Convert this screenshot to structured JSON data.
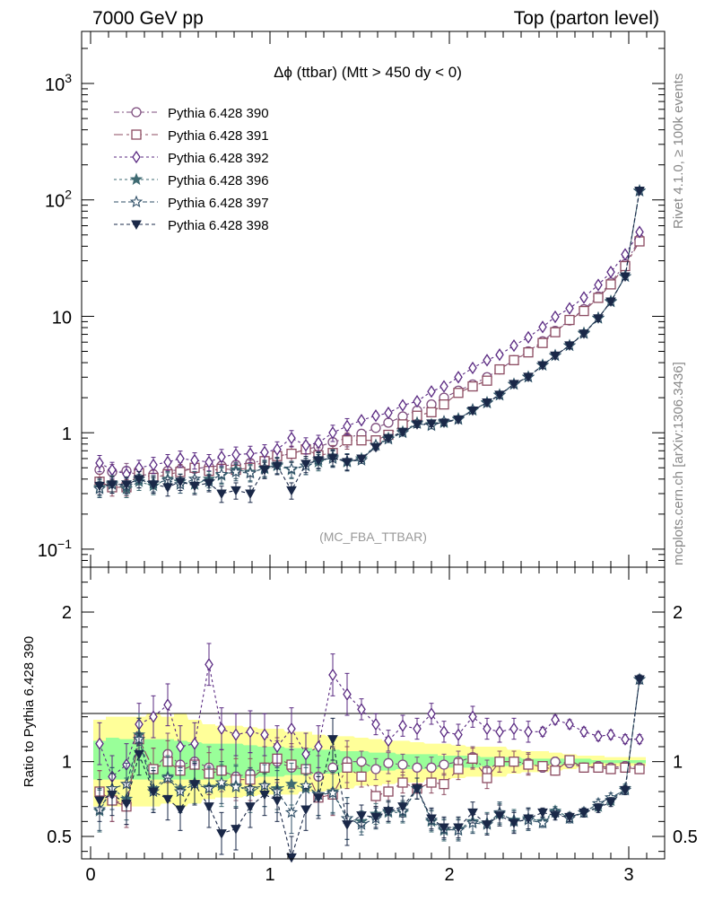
{
  "header": {
    "left": "7000 GeV pp",
    "right": "Top (parton level)"
  },
  "side": {
    "rivet": "Rivet 4.1.0, ≥ 100k events",
    "mcplots": "mcplots.cern.ch [arXiv:1306.3436]"
  },
  "watermark": "(MC_FBA_TTBAR)",
  "colors": {
    "s390": "#7e4e7e",
    "s391": "#8c4b61",
    "s392": "#5a2a82",
    "s396": "#3e6a72",
    "s397": "#2e4e66",
    "s398": "#1a2848",
    "band_yellow": "#ffff99",
    "band_green": "#99ff99"
  },
  "chart_data": {
    "type": "line",
    "title_prefix": "Δϕ",
    "title_rest": " (ttbar) (Mtt > 450 dy < 0)",
    "xlim": [
      -0.05,
      3.2
    ],
    "main": {
      "scale": "log",
      "ylim": [
        0.07,
        2800
      ],
      "ytick_labels": [
        {
          "value": 0.1,
          "base": "10",
          "exp": "−1"
        },
        {
          "value": 1,
          "base": "1",
          "exp": ""
        },
        {
          "value": 10,
          "base": "10",
          "exp": ""
        },
        {
          "value": 100,
          "base": "10",
          "exp": "2"
        },
        {
          "value": 1000,
          "base": "10",
          "exp": "3"
        }
      ]
    },
    "ratio": {
      "ylabel": "Ratio to Pythia 6.428 390",
      "ylim": [
        0.35,
        2.3
      ],
      "ytick_labels": [
        "0.5",
        "1",
        "2"
      ],
      "ytick_values": [
        0.5,
        1,
        2
      ]
    },
    "xtick_labels": [
      "0",
      "1",
      "2",
      "3"
    ],
    "xtick_values": [
      0,
      1,
      2,
      3
    ],
    "x": [
      0.05,
      0.12,
      0.2,
      0.27,
      0.35,
      0.43,
      0.5,
      0.58,
      0.66,
      0.73,
      0.81,
      0.89,
      0.97,
      1.04,
      1.12,
      1.2,
      1.27,
      1.35,
      1.43,
      1.51,
      1.59,
      1.66,
      1.74,
      1.82,
      1.9,
      1.97,
      2.05,
      2.13,
      2.21,
      2.28,
      2.36,
      2.44,
      2.52,
      2.59,
      2.67,
      2.75,
      2.83,
      2.9,
      2.98,
      3.06
    ],
    "series": [
      {
        "name": "Pythia 6.428 390",
        "marker": "circle-open",
        "dash": "6,3,2,3",
        "values": [
          0.48,
          0.46,
          0.47,
          0.43,
          0.44,
          0.47,
          0.48,
          0.49,
          0.51,
          0.52,
          0.53,
          0.55,
          0.58,
          0.63,
          0.66,
          0.72,
          0.76,
          0.83,
          0.9,
          0.98,
          1.1,
          1.22,
          1.38,
          1.55,
          1.75,
          2.0,
          2.3,
          2.6,
          3.0,
          3.5,
          4.2,
          5.0,
          6.1,
          7.5,
          9.2,
          11.5,
          14.8,
          19.5,
          28,
          46
        ],
        "ratio": [
          0.8,
          0.74,
          0.72,
          1.15,
          0.95,
          1.05,
          0.98,
          1.0,
          0.96,
          0.94,
          0.9,
          0.92,
          0.96,
          1.0,
          0.96,
          0.95,
          0.9,
          0.96,
          1.0,
          1.0,
          0.95,
          0.99,
          0.98,
          0.96,
          0.96,
          0.98,
          1.0,
          1.03,
          0.94,
          1.0,
          1.0,
          0.99,
          0.96,
          1.0,
          0.99,
          0.96,
          0.97,
          0.96,
          0.97,
          0.96
        ]
      },
      {
        "name": "Pythia 6.428 391",
        "marker": "square-open",
        "dash": "10,4,3,4",
        "values": [
          0.38,
          0.34,
          0.34,
          0.45,
          0.41,
          0.44,
          0.46,
          0.5,
          0.47,
          0.49,
          0.48,
          0.5,
          0.57,
          0.63,
          0.66,
          0.72,
          0.64,
          0.67,
          0.86,
          0.86,
          0.86,
          0.96,
          1.18,
          1.4,
          1.5,
          1.75,
          2.2,
          2.5,
          2.8,
          3.5,
          4.2,
          4.9,
          5.9,
          7.3,
          9.3,
          11.1,
          14.4,
          18.8,
          27,
          44
        ],
        "ratio": [
          0.8,
          0.74,
          0.7,
          1.15,
          0.95,
          1.0,
          0.94,
          0.98,
          0.92,
          0.94,
          0.88,
          0.88,
          0.96,
          1.02,
          0.98,
          0.95,
          0.76,
          0.78,
          0.96,
          0.9,
          0.77,
          0.8,
          0.86,
          0.82,
          0.86,
          0.85,
          0.95,
          1.02,
          0.89,
          1.0,
          1.0,
          0.98,
          0.97,
          0.94,
          1.01,
          0.96,
          0.96,
          0.95,
          0.96,
          0.95
        ]
      },
      {
        "name": "Pythia 6.428 392",
        "marker": "diamond-open",
        "dash": "3,3",
        "values": [
          0.55,
          0.48,
          0.44,
          0.5,
          0.53,
          0.56,
          0.6,
          0.58,
          0.56,
          0.62,
          0.65,
          0.66,
          0.68,
          0.72,
          0.9,
          0.78,
          0.82,
          1.0,
          1.14,
          1.28,
          1.4,
          1.48,
          1.72,
          1.86,
          2.26,
          2.5,
          3.0,
          3.6,
          4.2,
          4.68,
          5.6,
          6.6,
          8.1,
          9.9,
          11.7,
          14.5,
          18.6,
          24.0,
          34.0,
          53
        ],
        "ratio": [
          1.12,
          0.9,
          0.98,
          1.25,
          1.3,
          1.38,
          1.1,
          1.12,
          1.65,
          1.22,
          1.18,
          1.2,
          1.18,
          1.1,
          1.22,
          1.05,
          1.1,
          1.58,
          1.45,
          1.35,
          1.25,
          1.14,
          1.24,
          1.22,
          1.32,
          1.2,
          1.18,
          1.3,
          1.22,
          1.2,
          1.22,
          1.2,
          1.2,
          1.28,
          1.25,
          1.2,
          1.17,
          1.18,
          1.15,
          1.15
        ]
      },
      {
        "name": "Pythia 6.428 396",
        "marker": "star-solid",
        "dash": "3,3",
        "values": [
          0.34,
          0.37,
          0.33,
          0.38,
          0.35,
          0.4,
          0.38,
          0.36,
          0.4,
          0.43,
          0.48,
          0.46,
          0.49,
          0.52,
          0.48,
          0.52,
          0.56,
          0.62,
          0.56,
          0.6,
          0.78,
          0.9,
          1.02,
          1.22,
          1.18,
          1.22,
          1.32,
          1.56,
          1.82,
          2.12,
          2.62,
          3.02,
          3.82,
          4.62,
          5.62,
          7.2,
          9.6,
          13.5,
          22,
          120
        ],
        "ratio": [
          0.67,
          0.82,
          0.75,
          1.18,
          0.82,
          0.9,
          0.82,
          0.86,
          0.83,
          0.84,
          0.84,
          0.8,
          0.84,
          0.82,
          0.85,
          0.82,
          0.78,
          0.8,
          0.62,
          0.6,
          0.65,
          0.66,
          0.66,
          0.82,
          0.6,
          0.54,
          0.55,
          0.6,
          0.59,
          0.65,
          0.61,
          0.62,
          0.6,
          0.67,
          0.63,
          0.66,
          0.7,
          0.74,
          0.82,
          1.55
        ]
      },
      {
        "name": "Pythia 6.428 397",
        "marker": "star-open",
        "dash": "5,3",
        "values": [
          0.33,
          0.36,
          0.35,
          0.4,
          0.37,
          0.39,
          0.36,
          0.4,
          0.38,
          0.44,
          0.46,
          0.45,
          0.5,
          0.53,
          0.49,
          0.52,
          0.59,
          0.6,
          0.57,
          0.58,
          0.78,
          0.88,
          1.0,
          1.2,
          1.15,
          1.25,
          1.3,
          1.58,
          1.8,
          2.1,
          2.6,
          3.0,
          3.8,
          4.6,
          5.6,
          7.1,
          9.7,
          13.3,
          22,
          119
        ],
        "ratio": [
          0.68,
          0.82,
          0.85,
          1.15,
          0.8,
          0.89,
          0.8,
          0.85,
          0.82,
          0.86,
          0.83,
          0.82,
          0.84,
          0.8,
          0.66,
          0.84,
          0.78,
          0.79,
          0.62,
          0.58,
          0.62,
          0.67,
          0.67,
          0.82,
          0.61,
          0.55,
          0.54,
          0.59,
          0.58,
          0.66,
          0.6,
          0.61,
          0.59,
          0.66,
          0.62,
          0.66,
          0.72,
          0.76,
          0.81,
          1.55
        ]
      },
      {
        "name": "Pythia 6.428 398",
        "marker": "triangle-down-solid",
        "dash": "4,3",
        "values": [
          0.35,
          0.36,
          0.36,
          0.4,
          0.36,
          0.34,
          0.38,
          0.35,
          0.37,
          0.3,
          0.32,
          0.3,
          0.48,
          0.52,
          0.32,
          0.54,
          0.58,
          0.61,
          0.56,
          0.6,
          0.75,
          0.9,
          1.02,
          1.18,
          1.2,
          1.22,
          1.3,
          1.55,
          1.82,
          2.12,
          2.62,
          3.02,
          3.8,
          4.6,
          5.62,
          7.1,
          9.6,
          13.4,
          22.0,
          120
        ],
        "ratio": [
          0.74,
          0.78,
          0.72,
          1.05,
          0.8,
          0.75,
          0.68,
          0.85,
          0.7,
          0.52,
          0.55,
          0.7,
          0.78,
          0.74,
          0.36,
          0.68,
          0.76,
          1.15,
          0.58,
          0.64,
          0.63,
          0.67,
          0.7,
          0.82,
          0.62,
          0.56,
          0.56,
          0.66,
          0.58,
          0.64,
          0.59,
          0.62,
          0.66,
          0.64,
          0.63,
          0.66,
          0.69,
          0.73,
          0.81,
          1.55
        ]
      }
    ],
    "band_yellow_ratio": [
      [
        0.7,
        1.28
      ],
      [
        0.7,
        1.3
      ],
      [
        0.7,
        1.3
      ],
      [
        0.7,
        1.3
      ],
      [
        0.7,
        1.32
      ],
      [
        0.72,
        1.3
      ],
      [
        0.7,
        1.32
      ],
      [
        0.72,
        1.28
      ],
      [
        0.75,
        1.25
      ],
      [
        0.76,
        1.24
      ],
      [
        0.76,
        1.24
      ],
      [
        0.77,
        1.23
      ],
      [
        0.78,
        1.22
      ],
      [
        0.78,
        1.22
      ],
      [
        0.78,
        1.2
      ],
      [
        0.8,
        1.2
      ],
      [
        0.8,
        1.18
      ],
      [
        0.81,
        1.17
      ],
      [
        0.82,
        1.17
      ],
      [
        0.84,
        1.16
      ],
      [
        0.84,
        1.15
      ],
      [
        0.85,
        1.14
      ],
      [
        0.86,
        1.14
      ],
      [
        0.86,
        1.13
      ],
      [
        0.88,
        1.12
      ],
      [
        0.88,
        1.12
      ],
      [
        0.89,
        1.11
      ],
      [
        0.9,
        1.1
      ],
      [
        0.9,
        1.1
      ],
      [
        0.9,
        1.1
      ],
      [
        0.92,
        1.08
      ],
      [
        0.93,
        1.07
      ],
      [
        0.93,
        1.07
      ],
      [
        0.94,
        1.06
      ],
      [
        0.95,
        1.05
      ],
      [
        0.96,
        1.04
      ],
      [
        0.96,
        1.04
      ],
      [
        0.97,
        1.03
      ],
      [
        0.97,
        1.03
      ],
      [
        0.97,
        1.03
      ]
    ],
    "band_green_ratio": [
      [
        0.88,
        1.14
      ],
      [
        0.88,
        1.16
      ],
      [
        0.88,
        1.15
      ],
      [
        0.88,
        1.15
      ],
      [
        0.88,
        1.15
      ],
      [
        0.88,
        1.15
      ],
      [
        0.88,
        1.14
      ],
      [
        0.88,
        1.13
      ],
      [
        0.88,
        1.12
      ],
      [
        0.88,
        1.12
      ],
      [
        0.89,
        1.12
      ],
      [
        0.89,
        1.11
      ],
      [
        0.9,
        1.1
      ],
      [
        0.9,
        1.1
      ],
      [
        0.91,
        1.09
      ],
      [
        0.91,
        1.09
      ],
      [
        0.92,
        1.08
      ],
      [
        0.92,
        1.08
      ],
      [
        0.93,
        1.07
      ],
      [
        0.93,
        1.07
      ],
      [
        0.94,
        1.06
      ],
      [
        0.94,
        1.06
      ],
      [
        0.95,
        1.05
      ],
      [
        0.95,
        1.05
      ],
      [
        0.95,
        1.05
      ],
      [
        0.96,
        1.04
      ],
      [
        0.96,
        1.04
      ],
      [
        0.96,
        1.04
      ],
      [
        0.97,
        1.03
      ],
      [
        0.97,
        1.03
      ],
      [
        0.97,
        1.03
      ],
      [
        0.98,
        1.02
      ],
      [
        0.98,
        1.02
      ],
      [
        0.98,
        1.02
      ],
      [
        0.98,
        1.02
      ],
      [
        0.98,
        1.02
      ],
      [
        0.99,
        1.01
      ],
      [
        0.99,
        1.01
      ],
      [
        0.99,
        1.01
      ],
      [
        0.99,
        1.01
      ]
    ]
  }
}
